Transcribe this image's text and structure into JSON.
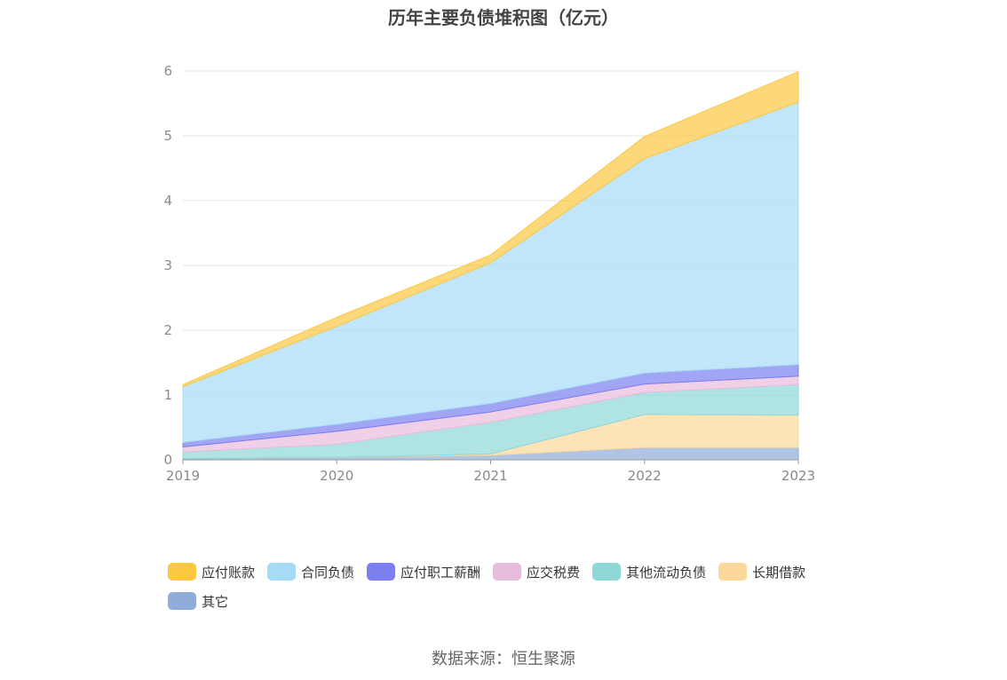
{
  "chart_data": {
    "type": "area",
    "stacked": true,
    "title": "历年主要负债堆积图（亿元）",
    "categories": [
      "2019",
      "2020",
      "2021",
      "2022",
      "2023"
    ],
    "ylim": [
      0,
      6
    ],
    "yticks": [
      "0",
      "1",
      "2",
      "3",
      "4",
      "5",
      "6"
    ],
    "series": [
      {
        "name": "其它",
        "color": "#8eaddb",
        "values": [
          0.02,
          0.04,
          0.07,
          0.19,
          0.19
        ]
      },
      {
        "name": "长期借款",
        "color": "#fcd99a",
        "values": [
          0.0,
          0.0,
          0.02,
          0.51,
          0.5
        ]
      },
      {
        "name": "其他流动负债",
        "color": "#8ed8d8",
        "values": [
          0.1,
          0.2,
          0.49,
          0.34,
          0.47
        ]
      },
      {
        "name": "应交税费",
        "color": "#e8bcdc",
        "values": [
          0.08,
          0.2,
          0.16,
          0.13,
          0.13
        ]
      },
      {
        "name": "应付职工薪酬",
        "color": "#7b7ff0",
        "values": [
          0.07,
          0.11,
          0.13,
          0.17,
          0.18
        ]
      },
      {
        "name": "合同负债",
        "color": "#a6dbf6",
        "values": [
          0.86,
          1.51,
          2.17,
          3.31,
          4.05
        ]
      },
      {
        "name": "应付账款",
        "color": "#fbc842",
        "values": [
          0.03,
          0.14,
          0.12,
          0.34,
          0.47
        ]
      }
    ],
    "legend": [
      "应付账款",
      "合同负债",
      "应付职工薪酬",
      "应交税费",
      "其他流动负债",
      "长期借款",
      "其它"
    ],
    "source": "数据来源：恒生聚源"
  }
}
